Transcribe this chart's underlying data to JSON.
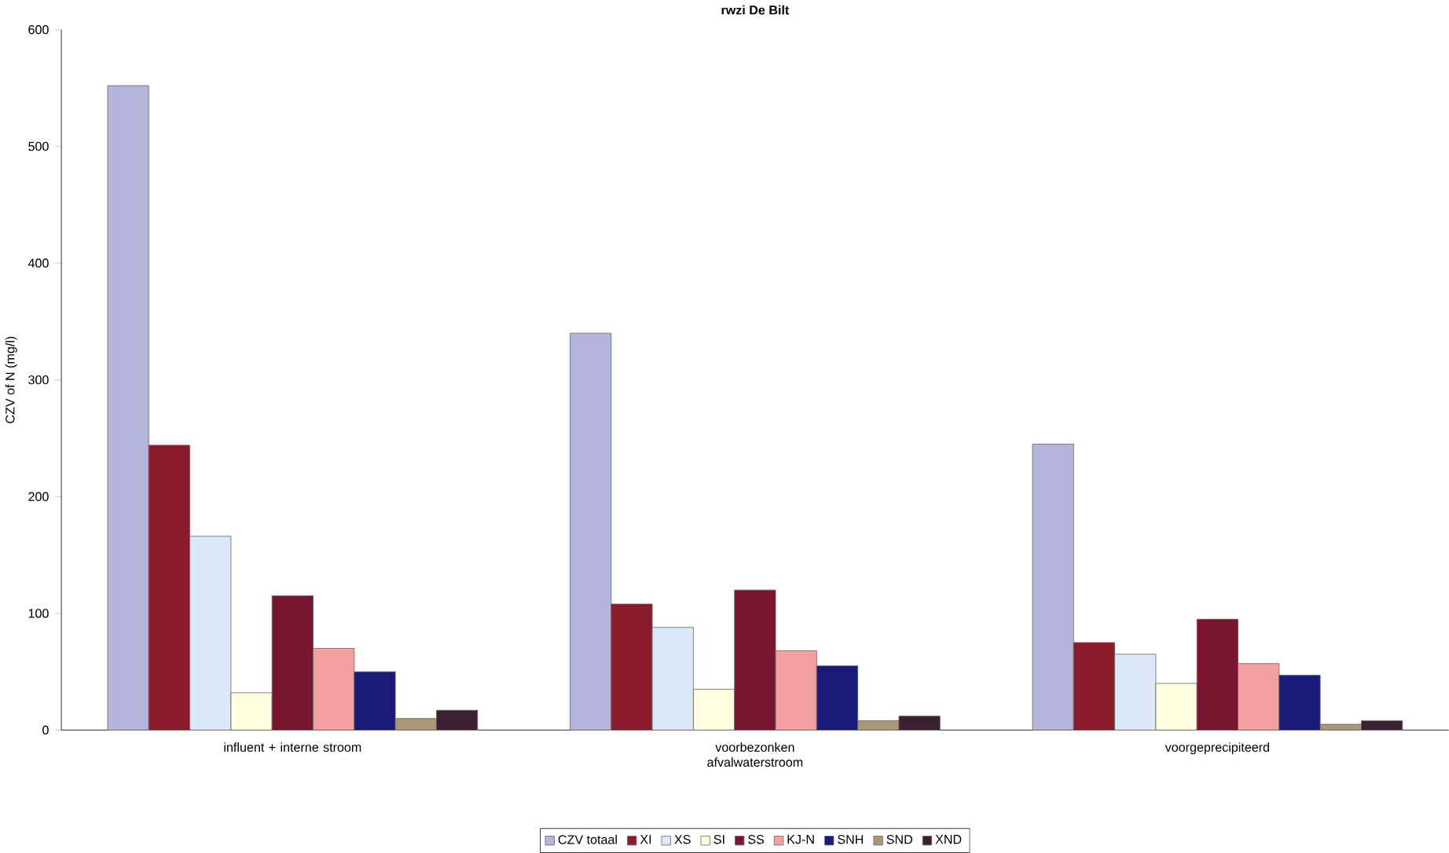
{
  "chart_data": {
    "type": "bar",
    "title": "rwzi De Bilt",
    "ylabel": "CZV of N (mg/l)",
    "categories": [
      "influent + interne stroom",
      "voorbezonken afvalwaterstroom",
      "voorgeprecipiteerd"
    ],
    "series": [
      {
        "name": "CZV totaal",
        "color": "#b4b4dc",
        "values": [
          552,
          340,
          245
        ]
      },
      {
        "name": "XI",
        "color": "#8b1a2a",
        "values": [
          244,
          108,
          75
        ]
      },
      {
        "name": "XS",
        "color": "#dde8f8",
        "values": [
          166,
          88,
          65
        ]
      },
      {
        "name": "SI",
        "color": "#ffffe0",
        "values": [
          32,
          35,
          40
        ]
      },
      {
        "name": "SS",
        "color": "#7a1530",
        "values": [
          115,
          120,
          95
        ]
      },
      {
        "name": "KJ-N",
        "color": "#f4a0a0",
        "values": [
          70,
          68,
          57
        ]
      },
      {
        "name": "SNH",
        "color": "#1a1a78",
        "values": [
          50,
          55,
          47
        ]
      },
      {
        "name": "SND",
        "color": "#a89878",
        "values": [
          10,
          8,
          5
        ]
      },
      {
        "name": "XND",
        "color": "#3a2030",
        "values": [
          17,
          12,
          8
        ]
      }
    ],
    "ylim": [
      0,
      600
    ],
    "yticks": [
      0,
      100,
      200,
      300,
      400,
      500,
      600
    ],
    "grid": false,
    "legend": "bottom"
  }
}
